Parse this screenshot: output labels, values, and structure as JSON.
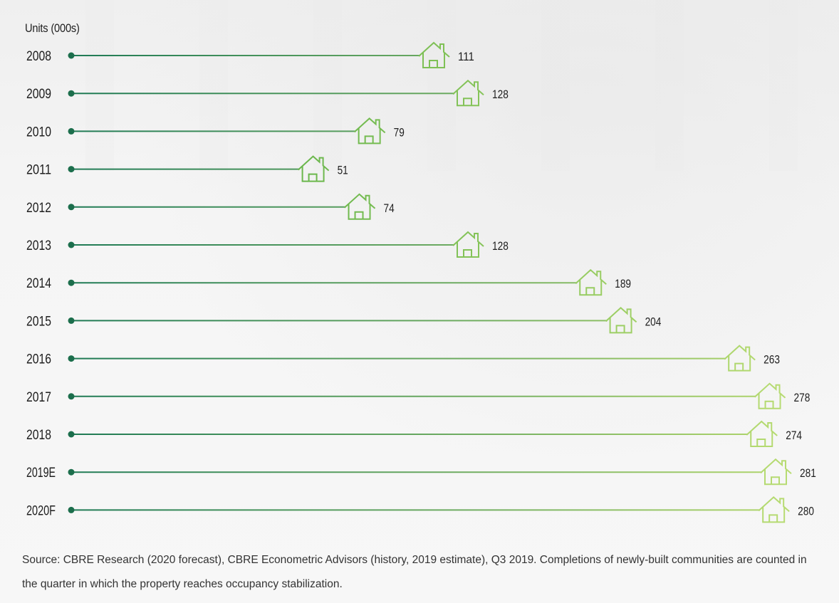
{
  "chart_data": {
    "type": "bar",
    "units_label": "Units (000s)",
    "categories": [
      "2008",
      "2009",
      "2010",
      "2011",
      "2012",
      "2013",
      "2014",
      "2015",
      "2016",
      "2017",
      "2018",
      "2019E",
      "2020F"
    ],
    "values": [
      111,
      128,
      79,
      51,
      74,
      128,
      189,
      204,
      263,
      278,
      274,
      281,
      280
    ],
    "orientation": "horizontal",
    "marker_icon": "house-icon",
    "colors": {
      "line_start": "#1f7a55",
      "line_end": "#b6d96d",
      "dot": "#1c6e4c",
      "icon_start": "#69b64b",
      "icon_end": "#b9dc73"
    }
  },
  "source_note": "Source: CBRE Research (2020 forecast), CBRE Econometric Advisors (history, 2019 estimate), Q3 2019. Completions of newly-built communities are counted in the quarter in which the property reaches occupancy stabilization."
}
